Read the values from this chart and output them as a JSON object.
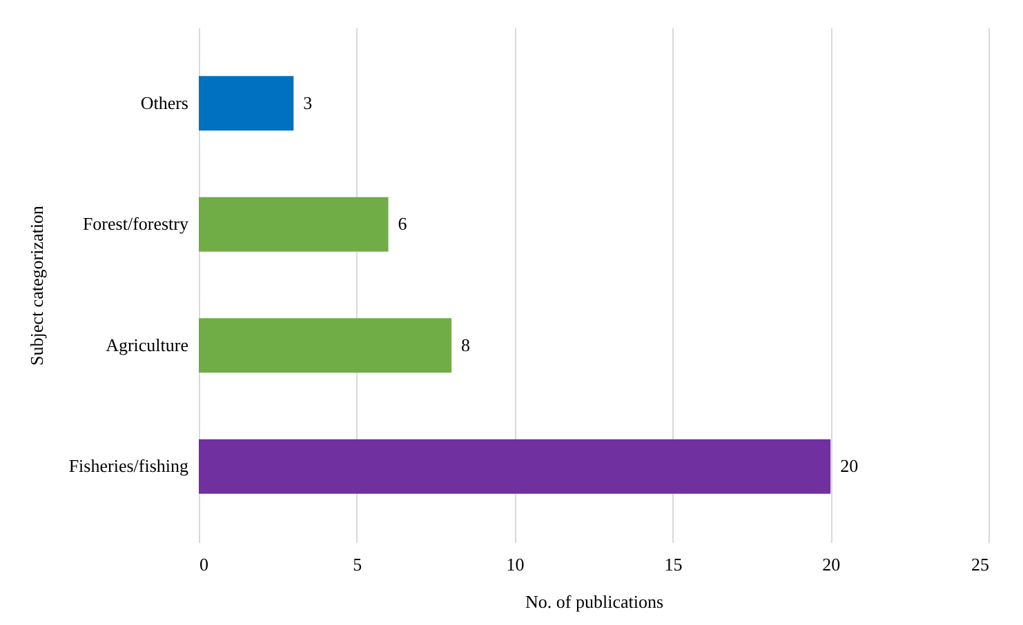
{
  "chart_data": {
    "type": "bar",
    "orientation": "horizontal",
    "xlabel": "No. of publications",
    "ylabel": "Subject categorization",
    "categories": [
      "Others",
      "Forest/forestry",
      "Agriculture",
      "Fisheries/fishing"
    ],
    "values": [
      3,
      6,
      8,
      20
    ],
    "colors": [
      "#0070c0",
      "#70ad47",
      "#70ad47",
      "#7030a0"
    ],
    "xlim": [
      0,
      25
    ],
    "xticks": [
      0,
      5,
      10,
      15,
      20,
      25
    ],
    "grid": "x",
    "data_labels": true
  }
}
